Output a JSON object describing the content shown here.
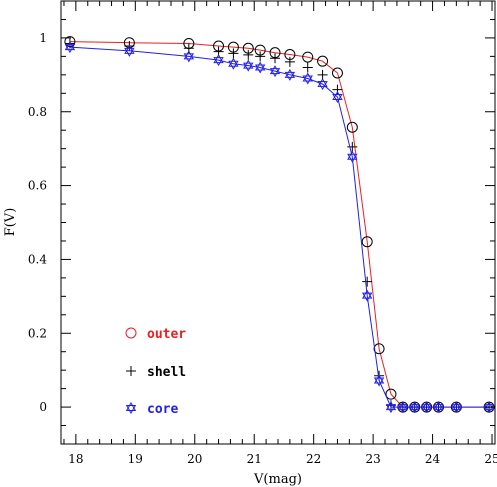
{
  "chart_data": {
    "type": "scatter",
    "xlabel": "V(mag)",
    "ylabel": "F(V)",
    "xlim": [
      17.75,
      25.05
    ],
    "ylim": [
      -0.1,
      1.1
    ],
    "xticks": [
      "18",
      "19",
      "20",
      "21",
      "22",
      "23",
      "24",
      "25"
    ],
    "yticks": [
      "0",
      "0.2",
      "0.4",
      "0.6",
      "0.8",
      "1"
    ],
    "grid": false,
    "legend_position": "lower-left",
    "series": [
      {
        "name": "outer",
        "marker": "circle",
        "line": true,
        "color": "#e82020",
        "x": [
          17.9,
          18.9,
          19.9,
          20.4,
          20.65,
          20.9,
          21.1,
          21.35,
          21.6,
          21.9,
          22.15,
          22.4,
          22.65,
          22.9,
          23.1,
          23.3,
          23.5,
          23.7,
          23.9,
          24.1,
          24.4,
          24.95
        ],
        "y": [
          0.99,
          0.987,
          0.985,
          0.978,
          0.975,
          0.972,
          0.967,
          0.96,
          0.955,
          0.948,
          0.937,
          0.905,
          0.758,
          0.448,
          0.158,
          0.035,
          0.0,
          0.0,
          0.0,
          0.0,
          0.0,
          0.0
        ]
      },
      {
        "name": "shell",
        "marker": "plus",
        "line": false,
        "color": "#000000",
        "x": [
          17.9,
          18.9,
          19.9,
          20.4,
          20.65,
          20.9,
          21.1,
          21.35,
          21.6,
          21.9,
          22.15,
          22.4,
          22.65,
          22.9,
          23.1,
          23.3,
          23.5,
          23.7,
          23.9,
          24.1,
          24.4,
          24.95
        ],
        "y": [
          0.985,
          0.978,
          0.972,
          0.963,
          0.958,
          0.954,
          0.95,
          0.945,
          0.935,
          0.92,
          0.9,
          0.86,
          0.705,
          0.34,
          0.085,
          0.005,
          0.0,
          0.0,
          0.0,
          0.0,
          0.0,
          0.0
        ]
      },
      {
        "name": "core",
        "marker": "star-of-david",
        "line": true,
        "color": "#2020e8",
        "x": [
          17.9,
          18.9,
          19.9,
          20.4,
          20.65,
          20.9,
          21.1,
          21.35,
          21.6,
          21.9,
          22.15,
          22.4,
          22.65,
          22.9,
          23.1,
          23.3,
          23.5,
          23.7,
          23.9,
          24.1,
          24.4,
          24.95
        ],
        "y": [
          0.975,
          0.965,
          0.95,
          0.94,
          0.93,
          0.925,
          0.92,
          0.91,
          0.9,
          0.89,
          0.875,
          0.84,
          0.678,
          0.302,
          0.072,
          0.0,
          0.0,
          0.0,
          0.0,
          0.0,
          0.0,
          0.0
        ]
      }
    ]
  }
}
